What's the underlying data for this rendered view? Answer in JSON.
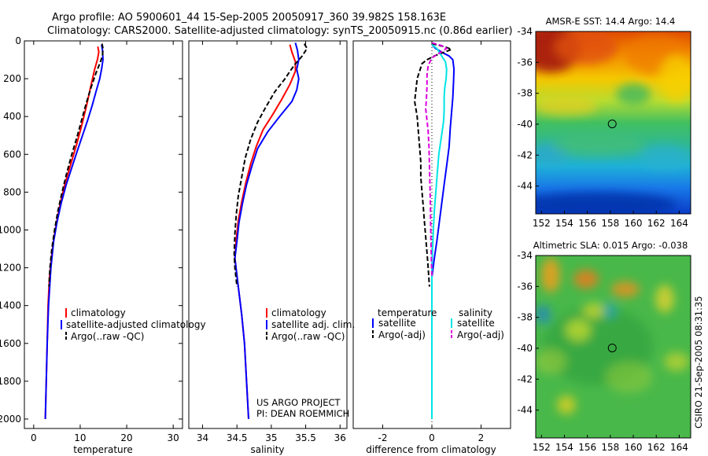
{
  "header": {
    "line1": "Argo profile: AO 5900601_44 15-Sep-2005 20050917_360 39.982S 158.163E",
    "line2": "Climatology: CARS2000. Satellite-adjusted climatology: synTS_20050915.nc (0.86d earlier)"
  },
  "side_label": "CSIRO 21-Sep-2005 08:31:35",
  "credit": {
    "line1": "US ARGO PROJECT",
    "line2": "PI: DEAN ROEMMICH"
  },
  "colors": {
    "climatology": "#ff0000",
    "satellite": "#0000ff",
    "argo": "#000000",
    "sat_diff": "#00e5e5",
    "argo_sal_diff": "#dd00dd"
  },
  "chart_data": [
    {
      "type": "line",
      "id": "temperature",
      "xlabel": "temperature",
      "xlim": [
        -2,
        32
      ],
      "xticks": [
        0,
        10,
        20,
        30
      ],
      "ylim": [
        2050,
        0
      ],
      "yticks": [
        0,
        200,
        400,
        600,
        800,
        1000,
        1200,
        1400,
        1600,
        1800,
        2000
      ],
      "y_axis_shown": true,
      "series": [
        {
          "name": "climatology",
          "color": "#ff0000",
          "dash": "solid",
          "points": [
            [
              13.8,
              30
            ],
            [
              14.0,
              60
            ],
            [
              13.7,
              100
            ],
            [
              13.1,
              150
            ],
            [
              12.2,
              250
            ],
            [
              11.3,
              350
            ],
            [
              10.3,
              450
            ],
            [
              9.2,
              550
            ],
            [
              8.0,
              650
            ],
            [
              6.8,
              750
            ],
            [
              5.8,
              850
            ],
            [
              5.0,
              950
            ],
            [
              4.3,
              1050
            ],
            [
              3.8,
              1150
            ],
            [
              3.4,
              1250
            ],
            [
              3.1,
              1400
            ],
            [
              2.9,
              1600
            ],
            [
              2.7,
              1800
            ],
            [
              2.5,
              2000
            ]
          ]
        },
        {
          "name": "satellite-adjusted climatology",
          "color": "#0000ff",
          "dash": "solid",
          "points": [
            [
              14.6,
              20
            ],
            [
              14.8,
              50
            ],
            [
              14.9,
              100
            ],
            [
              14.6,
              150
            ],
            [
              14.2,
              200
            ],
            [
              13.5,
              260
            ],
            [
              12.6,
              340
            ],
            [
              11.6,
              420
            ],
            [
              10.5,
              500
            ],
            [
              9.4,
              580
            ],
            [
              8.2,
              670
            ],
            [
              7.0,
              760
            ],
            [
              5.9,
              860
            ],
            [
              5.0,
              960
            ],
            [
              4.3,
              1060
            ],
            [
              3.7,
              1200
            ],
            [
              3.2,
              1400
            ],
            [
              2.9,
              1600
            ],
            [
              2.7,
              1800
            ],
            [
              2.5,
              2000
            ]
          ]
        },
        {
          "name": "Argo(..raw -QC)",
          "color": "#000000",
          "dash": "dash",
          "points": [
            [
              14.7,
              15
            ],
            [
              14.9,
              40
            ],
            [
              14.8,
              80
            ],
            [
              14.2,
              120
            ],
            [
              13.4,
              170
            ],
            [
              12.3,
              250
            ],
            [
              11.3,
              330
            ],
            [
              10.3,
              420
            ],
            [
              9.3,
              510
            ],
            [
              8.2,
              600
            ],
            [
              7.1,
              700
            ],
            [
              6.1,
              800
            ],
            [
              5.2,
              900
            ],
            [
              4.5,
              1000
            ],
            [
              3.9,
              1100
            ],
            [
              3.5,
              1200
            ],
            [
              3.3,
              1300
            ]
          ]
        }
      ],
      "legend": [
        "climatology",
        "satellite-adjusted climatology",
        "Argo(..raw -QC)"
      ]
    },
    {
      "type": "line",
      "id": "salinity",
      "xlabel": "salinity",
      "xlim": [
        33.8,
        36.1
      ],
      "xticks": [
        34,
        34.5,
        35,
        35.5,
        36
      ],
      "ylim": [
        2050,
        0
      ],
      "y_axis_shown": false,
      "series": [
        {
          "name": "climatology",
          "color": "#ff0000",
          "dash": "solid",
          "points": [
            [
              35.27,
              20
            ],
            [
              35.3,
              60
            ],
            [
              35.35,
              110
            ],
            [
              35.35,
              160
            ],
            [
              35.27,
              230
            ],
            [
              35.15,
              310
            ],
            [
              35.02,
              390
            ],
            [
              34.88,
              470
            ],
            [
              34.78,
              560
            ],
            [
              34.7,
              650
            ],
            [
              34.63,
              750
            ],
            [
              34.57,
              850
            ],
            [
              34.52,
              950
            ],
            [
              34.49,
              1050
            ],
            [
              34.47,
              1150
            ],
            [
              34.52,
              1300
            ],
            [
              34.57,
              1450
            ],
            [
              34.61,
              1600
            ],
            [
              34.64,
              1800
            ],
            [
              34.67,
              2000
            ]
          ]
        },
        {
          "name": "satellite adj. clim.",
          "color": "#0000ff",
          "dash": "solid",
          "points": [
            [
              35.35,
              10
            ],
            [
              35.38,
              50
            ],
            [
              35.4,
              100
            ],
            [
              35.37,
              150
            ],
            [
              35.4,
              200
            ],
            [
              35.37,
              260
            ],
            [
              35.3,
              320
            ],
            [
              35.12,
              400
            ],
            [
              34.95,
              480
            ],
            [
              34.8,
              570
            ],
            [
              34.72,
              660
            ],
            [
              34.64,
              760
            ],
            [
              34.58,
              860
            ],
            [
              34.53,
              960
            ],
            [
              34.5,
              1060
            ],
            [
              34.47,
              1150
            ],
            [
              34.52,
              1300
            ],
            [
              34.57,
              1450
            ],
            [
              34.61,
              1600
            ],
            [
              34.64,
              1800
            ],
            [
              34.67,
              2000
            ]
          ]
        },
        {
          "name": "Argo(..raw -QC)",
          "color": "#000000",
          "dash": "dash",
          "points": [
            [
              35.48,
              15
            ],
            [
              35.52,
              40
            ],
            [
              35.45,
              80
            ],
            [
              35.33,
              130
            ],
            [
              35.2,
              200
            ],
            [
              35.05,
              270
            ],
            [
              34.92,
              350
            ],
            [
              34.8,
              430
            ],
            [
              34.7,
              520
            ],
            [
              34.62,
              620
            ],
            [
              34.57,
              720
            ],
            [
              34.52,
              820
            ],
            [
              34.49,
              920
            ],
            [
              34.47,
              1020
            ],
            [
              34.46,
              1120
            ],
            [
              34.47,
              1200
            ],
            [
              34.5,
              1300
            ]
          ]
        }
      ],
      "legend": [
        "climatology",
        "satellite adj. clim.",
        "Argo(..raw -QC)"
      ]
    },
    {
      "type": "line",
      "id": "difference",
      "xlabel": "difference from climatology",
      "xlim": [
        -3.2,
        3.2
      ],
      "xticks": [
        -2,
        0,
        2
      ],
      "ylim": [
        2050,
        0
      ],
      "y_axis_shown": false,
      "series": [
        {
          "name": "temperature satellite",
          "color": "#0000ff",
          "dash": "solid",
          "points": [
            [
              0.0,
              20
            ],
            [
              0.15,
              40
            ],
            [
              0.4,
              60
            ],
            [
              0.7,
              80
            ],
            [
              0.85,
              100
            ],
            [
              0.9,
              150
            ],
            [
              0.88,
              220
            ],
            [
              0.85,
              300
            ],
            [
              0.8,
              380
            ],
            [
              0.75,
              460
            ],
            [
              0.7,
              560
            ],
            [
              0.6,
              660
            ],
            [
              0.5,
              760
            ],
            [
              0.4,
              860
            ],
            [
              0.3,
              960
            ],
            [
              0.2,
              1060
            ],
            [
              0.1,
              1150
            ],
            [
              0.0,
              1250
            ]
          ]
        },
        {
          "name": "temperature Argo(-adj)",
          "color": "#000000",
          "dash": "dash",
          "points": [
            [
              0.0,
              15
            ],
            [
              0.5,
              30
            ],
            [
              0.8,
              45
            ],
            [
              0.5,
              60
            ],
            [
              0.1,
              80
            ],
            [
              -0.2,
              100
            ],
            [
              -0.4,
              120
            ],
            [
              -0.5,
              160
            ],
            [
              -0.6,
              200
            ],
            [
              -0.65,
              260
            ],
            [
              -0.7,
              320
            ],
            [
              -0.6,
              400
            ],
            [
              -0.55,
              480
            ],
            [
              -0.5,
              560
            ],
            [
              -0.45,
              640
            ],
            [
              -0.45,
              720
            ],
            [
              -0.4,
              800
            ],
            [
              -0.35,
              880
            ],
            [
              -0.3,
              960
            ],
            [
              -0.25,
              1040
            ],
            [
              -0.2,
              1120
            ],
            [
              -0.15,
              1200
            ],
            [
              -0.1,
              1300
            ]
          ]
        },
        {
          "name": "salinity satellite",
          "color": "#00e5e5",
          "dash": "solid",
          "points": [
            [
              0.0,
              20
            ],
            [
              0.2,
              40
            ],
            [
              0.35,
              70
            ],
            [
              0.55,
              110
            ],
            [
              0.6,
              150
            ],
            [
              0.58,
              200
            ],
            [
              0.52,
              250
            ],
            [
              0.5,
              300
            ],
            [
              0.5,
              360
            ],
            [
              0.48,
              420
            ],
            [
              0.42,
              480
            ],
            [
              0.35,
              540
            ],
            [
              0.28,
              600
            ],
            [
              0.22,
              700
            ],
            [
              0.16,
              800
            ],
            [
              0.1,
              900
            ],
            [
              0.06,
              1000
            ],
            [
              0.03,
              1100
            ],
            [
              0.0,
              1200
            ],
            [
              0.0,
              2000
            ]
          ]
        },
        {
          "name": "salinity Argo(-adj)",
          "color": "#dd00dd",
          "dash": "dash",
          "points": [
            [
              0.0,
              10
            ],
            [
              0.4,
              25
            ],
            [
              0.6,
              40
            ],
            [
              0.3,
              65
            ],
            [
              0.0,
              90
            ],
            [
              -0.15,
              130
            ],
            [
              -0.2,
              180
            ],
            [
              -0.2,
              240
            ],
            [
              -0.22,
              300
            ],
            [
              -0.25,
              360
            ],
            [
              -0.2,
              420
            ],
            [
              -0.15,
              480
            ],
            [
              -0.12,
              560
            ],
            [
              -0.1,
              660
            ],
            [
              -0.08,
              760
            ],
            [
              -0.06,
              860
            ],
            [
              -0.05,
              960
            ],
            [
              -0.04,
              1060
            ],
            [
              -0.02,
              1160
            ],
            [
              0.0,
              1250
            ]
          ]
        }
      ],
      "legend_headers": [
        "temperature",
        "salinity"
      ],
      "legend": [
        "satellite",
        "Argo(-adj)",
        "satellite",
        "Argo(-adj)"
      ]
    },
    {
      "type": "heatmap",
      "id": "sst-map",
      "title": "AMSR-E SST: 14.4 Argo: 14.4",
      "xlim": [
        151.5,
        165
      ],
      "ylim": [
        -45.8,
        -34
      ],
      "xticks": [
        152,
        154,
        156,
        158,
        160,
        162,
        164
      ],
      "yticks": [
        -34,
        -36,
        -38,
        -40,
        -42,
        -44
      ],
      "marker": [
        158.163,
        -39.982
      ]
    },
    {
      "type": "heatmap",
      "id": "sla-map",
      "title": "Altimetric SLA: 0.015 Argo: -0.038",
      "xlim": [
        151.5,
        165
      ],
      "ylim": [
        -45.8,
        -34
      ],
      "xticks": [
        152,
        154,
        156,
        158,
        160,
        162,
        164
      ],
      "yticks": [
        -34,
        -36,
        -38,
        -40,
        -42,
        -44
      ],
      "marker": [
        158.163,
        -39.982
      ]
    }
  ]
}
